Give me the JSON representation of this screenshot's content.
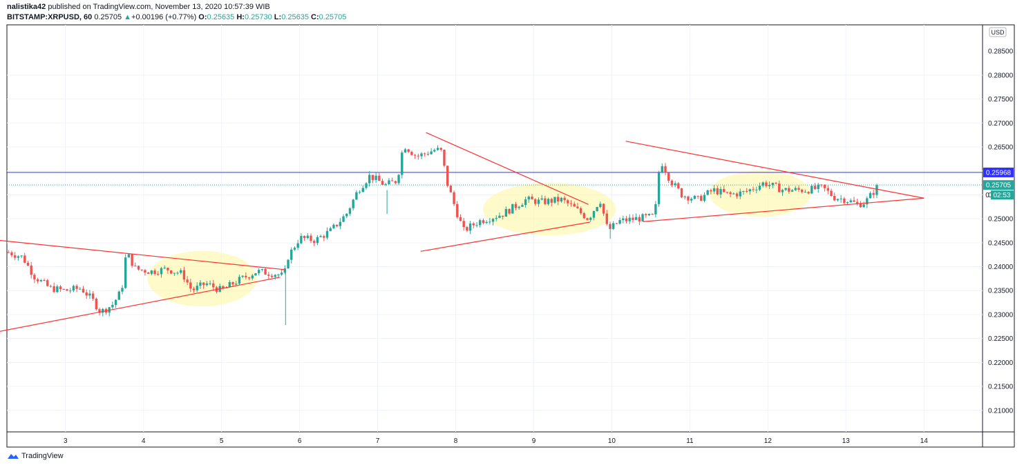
{
  "header": {
    "author": "nalistika42",
    "published": "published on TradingView.com, November 13, 2020 10:57:39 WIB",
    "symbol": "BITSTAMP:XRPUSD, 60",
    "last": "0.25705",
    "change_arrow": "▲",
    "change": "+0.00196 (+0.77%)",
    "o_label": "O:",
    "o": "0.25635",
    "h_label": "H:",
    "h": "0.25730",
    "l_label": "L:",
    "l": "0.25635",
    "c_label": "C:",
    "c": "0.25705"
  },
  "footer": {
    "brand": "TradingView",
    "logo_icon": "tradingview-logo-icon"
  },
  "colors": {
    "up": "#26a69a",
    "down": "#ef5350",
    "hline": "#3030ff",
    "trend": "#ff3030",
    "ellipse": "#fff59d",
    "grid": "#f0f3fa"
  },
  "chart_data": {
    "type": "candlestick",
    "currency_badge": "USD",
    "ylim": [
      0.2055,
      0.2905
    ],
    "yticks": [
      "0.28000",
      "0.27500",
      "0.27000",
      "0.26500",
      "0.26000",
      "0.25500",
      "0.25000",
      "0.24500",
      "0.24000",
      "0.23500",
      "0.23000",
      "0.22500",
      "0.22000",
      "0.21500",
      "0.21000"
    ],
    "y_top_tick_partial": "0.28500",
    "xlim": [
      2.25,
      14.75
    ],
    "xticks": [
      {
        "v": 3,
        "label": "3"
      },
      {
        "v": 4,
        "label": "4"
      },
      {
        "v": 5,
        "label": "5"
      },
      {
        "v": 6,
        "label": "6"
      },
      {
        "v": 7,
        "label": "7"
      },
      {
        "v": 8,
        "label": "8"
      },
      {
        "v": 9,
        "label": "9"
      },
      {
        "v": 10,
        "label": "10"
      },
      {
        "v": 11,
        "label": "11"
      },
      {
        "v": 12,
        "label": "12"
      },
      {
        "v": 13,
        "label": "13"
      },
      {
        "v": 14,
        "label": "14"
      }
    ],
    "horizontal_line": {
      "value": 0.25968,
      "label": "0.25968"
    },
    "last_price": {
      "value": 0.25705,
      "label": "0.25705",
      "countdown": "02:53"
    },
    "axis_partial_label": "0",
    "anchors": [
      [
        2.27,
        0.243
      ],
      [
        2.45,
        0.242
      ],
      [
        2.6,
        0.238
      ],
      [
        2.8,
        0.2355
      ],
      [
        3.0,
        0.235
      ],
      [
        3.2,
        0.2355
      ],
      [
        3.35,
        0.233
      ],
      [
        3.45,
        0.2305
      ],
      [
        3.6,
        0.232
      ],
      [
        3.72,
        0.235
      ],
      [
        3.78,
        0.243
      ],
      [
        3.9,
        0.2395
      ],
      [
        4.1,
        0.239
      ],
      [
        4.3,
        0.2395
      ],
      [
        4.5,
        0.2385
      ],
      [
        4.62,
        0.235
      ],
      [
        4.8,
        0.2365
      ],
      [
        5.0,
        0.235
      ],
      [
        5.2,
        0.237
      ],
      [
        5.45,
        0.239
      ],
      [
        5.7,
        0.2385
      ],
      [
        5.8,
        0.238
      ],
      [
        5.85,
        0.242
      ],
      [
        6.0,
        0.246
      ],
      [
        6.2,
        0.2455
      ],
      [
        6.4,
        0.2475
      ],
      [
        6.6,
        0.251
      ],
      [
        6.75,
        0.256
      ],
      [
        6.9,
        0.259
      ],
      [
        7.1,
        0.257
      ],
      [
        7.25,
        0.258
      ],
      [
        7.33,
        0.2655
      ],
      [
        7.5,
        0.263
      ],
      [
        7.75,
        0.2645
      ],
      [
        7.82,
        0.264
      ],
      [
        7.88,
        0.258
      ],
      [
        8.0,
        0.252
      ],
      [
        8.1,
        0.2475
      ],
      [
        8.3,
        0.2495
      ],
      [
        8.6,
        0.251
      ],
      [
        8.9,
        0.254
      ],
      [
        9.1,
        0.2535
      ],
      [
        9.35,
        0.254
      ],
      [
        9.5,
        0.2525
      ],
      [
        9.7,
        0.25
      ],
      [
        9.85,
        0.254
      ],
      [
        9.95,
        0.2475
      ],
      [
        10.1,
        0.2495
      ],
      [
        10.3,
        0.25
      ],
      [
        10.55,
        0.2505
      ],
      [
        10.62,
        0.2625
      ],
      [
        10.75,
        0.258
      ],
      [
        10.9,
        0.255
      ],
      [
        11.1,
        0.254
      ],
      [
        11.3,
        0.256
      ],
      [
        11.5,
        0.255
      ],
      [
        11.7,
        0.2555
      ],
      [
        11.95,
        0.2575
      ],
      [
        12.2,
        0.256
      ],
      [
        12.5,
        0.256
      ],
      [
        12.7,
        0.2565
      ],
      [
        12.85,
        0.2545
      ],
      [
        13.0,
        0.254
      ],
      [
        13.15,
        0.253
      ],
      [
        13.25,
        0.2535
      ],
      [
        13.42,
        0.257
      ]
    ],
    "trendlines": [
      {
        "p1": [
          2.1,
          0.2263
        ],
        "p2": [
          5.75,
          0.2378
        ]
      },
      {
        "p1": [
          2.15,
          0.2455
        ],
        "p2": [
          5.8,
          0.2394
        ]
      },
      {
        "p1": [
          7.62,
          0.268
        ],
        "p2": [
          9.7,
          0.253
        ]
      },
      {
        "p1": [
          7.55,
          0.2432
        ],
        "p2": [
          9.72,
          0.2493
        ]
      },
      {
        "p1": [
          10.18,
          0.2662
        ],
        "p2": [
          14.0,
          0.2543
        ]
      },
      {
        "p1": [
          10.4,
          0.2494
        ],
        "p2": [
          14.0,
          0.2543
        ]
      }
    ],
    "highlights": [
      {
        "cx": 4.75,
        "cy": 0.2375,
        "rx": 0.7,
        "ry": 0.0058
      },
      {
        "cx": 9.2,
        "cy": 0.252,
        "rx": 0.85,
        "ry": 0.0055
      },
      {
        "cx": 11.9,
        "cy": 0.2552,
        "rx": 0.65,
        "ry": 0.0048
      }
    ]
  }
}
